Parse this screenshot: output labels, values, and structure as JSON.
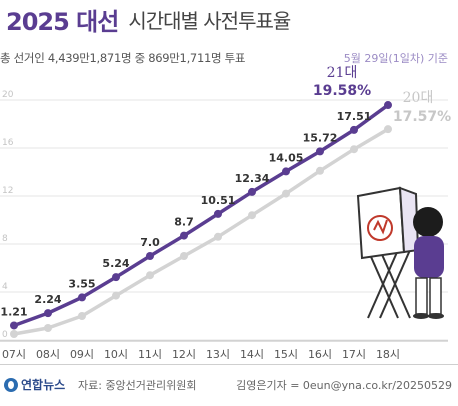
{
  "header": {
    "headline": "2025 대선",
    "subhead": "시간대별 사전투표율",
    "summary": "총 선거인 4,439만1,871명 중 869만1,711명 투표",
    "as_of": "5월 29일(1일차) 기준"
  },
  "footer": {
    "brand": "연합뉴스",
    "source": "자료: 중앙선거관리위원회",
    "credit": "김영은기자 = 0eun@yna.co.kr/20250529"
  },
  "colors": {
    "series_21": "#5a3d91",
    "series_20": "#d3d3d3",
    "grid": "#e6e6e6"
  },
  "chart_data": {
    "type": "line",
    "categories": [
      "07시",
      "08시",
      "09시",
      "10시",
      "11시",
      "12시",
      "13시",
      "14시",
      "15시",
      "16시",
      "17시",
      "18시"
    ],
    "ylim": [
      0,
      20
    ],
    "yticks": [
      0,
      4,
      8,
      12,
      16,
      20
    ],
    "grid": true,
    "series": [
      {
        "name": "21대",
        "values": [
          1.21,
          2.24,
          3.55,
          5.24,
          7.0,
          8.7,
          10.51,
          12.34,
          14.05,
          15.72,
          17.51,
          19.58
        ],
        "labels": [
          "1.21",
          "2.24",
          "3.55",
          "5.24",
          "7.0",
          "8.7",
          "10.51",
          "12.34",
          "14.05",
          "15.72",
          "17.51",
          "19.58%"
        ]
      },
      {
        "name": "20대",
        "values": [
          0.5,
          1.0,
          2.0,
          3.7,
          5.4,
          7.0,
          8.6,
          10.4,
          12.2,
          14.1,
          15.9,
          17.57
        ],
        "end_label": "17.57%"
      }
    ]
  }
}
